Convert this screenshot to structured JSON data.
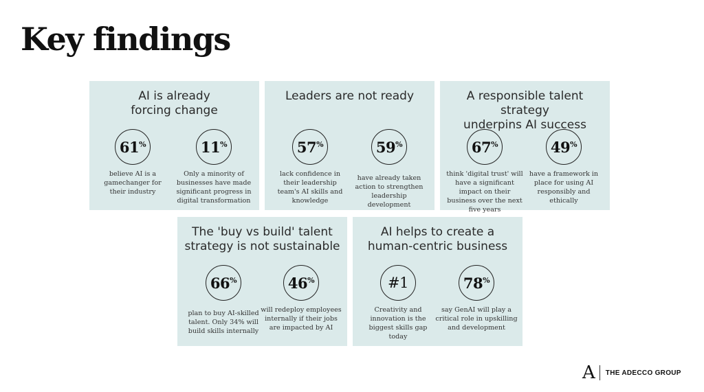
{
  "title": "Key findings",
  "cards": [
    {
      "title": "AI is already\nforcing change",
      "stats": [
        {
          "value": "61",
          "unit": "%",
          "text": "believe AI is a gamechanger for their industry"
        },
        {
          "value": "11",
          "unit": "%",
          "text": "Only a minority of businesses have made significant progress in digital transformation"
        }
      ]
    },
    {
      "title": "Leaders are not ready",
      "stats": [
        {
          "value": "57",
          "unit": "%",
          "text": "lack confidence in their leadership team's AI skills and knowledge"
        },
        {
          "value": "59",
          "unit": "%",
          "text": "have already taken action to strengthen leadership development"
        }
      ]
    },
    {
      "title": "A responsible talent strategy\nunderpins AI success",
      "stats": [
        {
          "value": "67",
          "unit": "%",
          "text": "think 'digital trust' will have a significant impact on their business over the next five years"
        },
        {
          "value": "49",
          "unit": "%",
          "text": "have a framework in place for using AI responsibly and ethically"
        }
      ]
    },
    {
      "title": "The 'buy vs build' talent\nstrategy is not sustainable",
      "stats": [
        {
          "value": "66",
          "unit": "%",
          "text": "plan to buy AI-skilled talent. Only 34% will build skills internally"
        },
        {
          "value": "46",
          "unit": "%",
          "text": "will redeploy employees internally if their jobs are impacted by AI"
        }
      ]
    },
    {
      "title": "AI helps to create a\nhuman-centric business",
      "stats": [
        {
          "value": "#1",
          "unit": "",
          "text": "Creativity and innovation is the biggest skills gap today"
        },
        {
          "value": "78",
          "unit": "%",
          "text": "say GenAI will play a critical role in upskilling and development"
        }
      ]
    }
  ],
  "logo": {
    "mark": "A",
    "text": "THE ADECCO GROUP"
  }
}
